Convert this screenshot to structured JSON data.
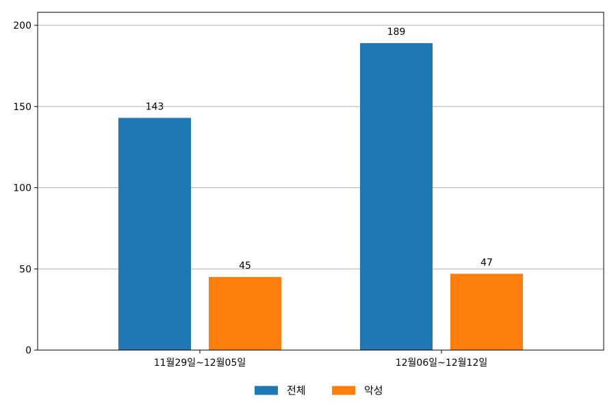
{
  "chart_data": {
    "type": "bar",
    "categories": [
      "11월29일~12월05일",
      "12월06일~12월12일"
    ],
    "series": [
      {
        "name": "전체",
        "values": [
          143,
          189
        ],
        "color": "#1f77b4"
      },
      {
        "name": "악성",
        "values": [
          45,
          47
        ],
        "color": "#ff7f0e"
      }
    ],
    "ylim": [
      0,
      208
    ],
    "yticks": [
      0,
      50,
      100,
      150,
      200
    ],
    "grid": "horizontal",
    "legend_position": "bottom-center",
    "data_labels": true,
    "title": "",
    "xlabel": "",
    "ylabel": ""
  }
}
